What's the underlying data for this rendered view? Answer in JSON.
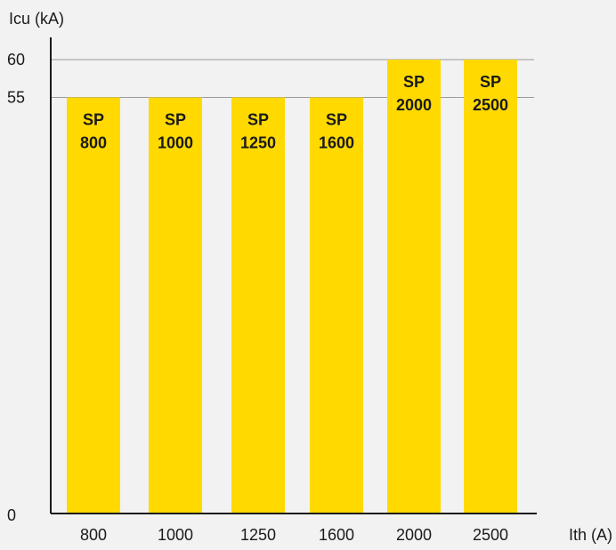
{
  "chart_data": {
    "type": "bar",
    "categories": [
      "800",
      "1000",
      "1250",
      "1600",
      "2000",
      "2500"
    ],
    "values": [
      55,
      55,
      55,
      55,
      60,
      60
    ],
    "bar_labels": [
      [
        "SP",
        "800"
      ],
      [
        "SP",
        "1000"
      ],
      [
        "SP",
        "1250"
      ],
      [
        "SP",
        "1600"
      ],
      [
        "SP",
        "2000"
      ],
      [
        "SP",
        "2500"
      ]
    ],
    "xlabel": "Ith (A)",
    "ylabel": "Icu (kA)",
    "yticks": [
      "0",
      "55",
      "60"
    ],
    "ytick_values": [
      0,
      55,
      60
    ],
    "ylim": [
      0,
      60
    ],
    "reference_lines": [
      55,
      60
    ],
    "bar_color": "#ffd900",
    "background_color": "#f2f2f2",
    "grid": false
  }
}
